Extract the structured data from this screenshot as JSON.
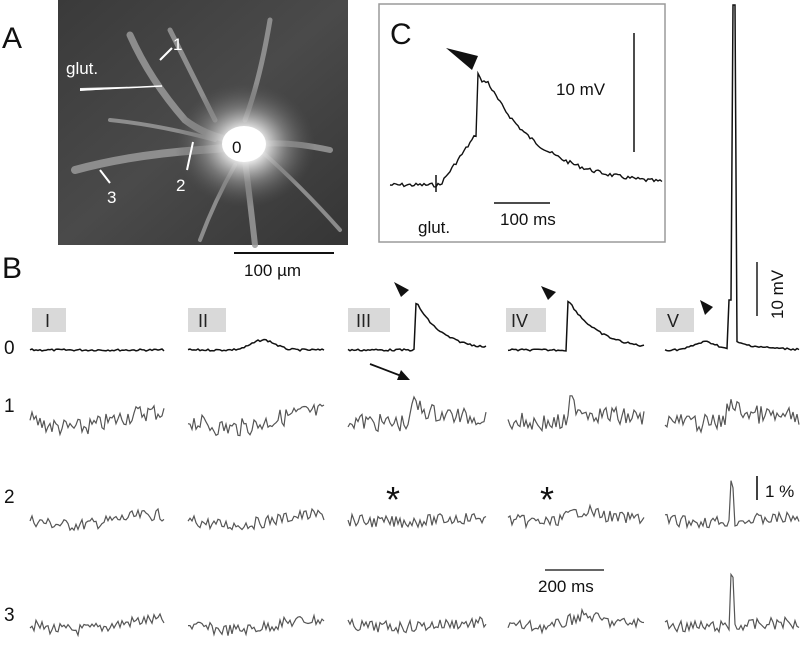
{
  "panels": {
    "A": {
      "letter": "A",
      "labels": {
        "glut": "glut.",
        "site0": "0",
        "site1": "1",
        "site2": "2",
        "site3": "3"
      },
      "scalebar": "100 µm"
    },
    "B": {
      "letter": "B",
      "columns": [
        "I",
        "II",
        "III",
        "IV",
        "V"
      ],
      "rows": [
        "0",
        "1",
        "2",
        "3"
      ],
      "voltage_scale": "10 mV",
      "fluor_scale": "1 %",
      "time_scale": "200 ms",
      "asterisk": "*"
    },
    "C": {
      "letter": "C",
      "voltage_scale": "10 mV",
      "time_scale": "100 ms",
      "stim_label": "glut."
    }
  },
  "colors": {
    "trace_dark": "#111111",
    "trace_gray": "#555555",
    "frame": "#9a9a9a"
  }
}
